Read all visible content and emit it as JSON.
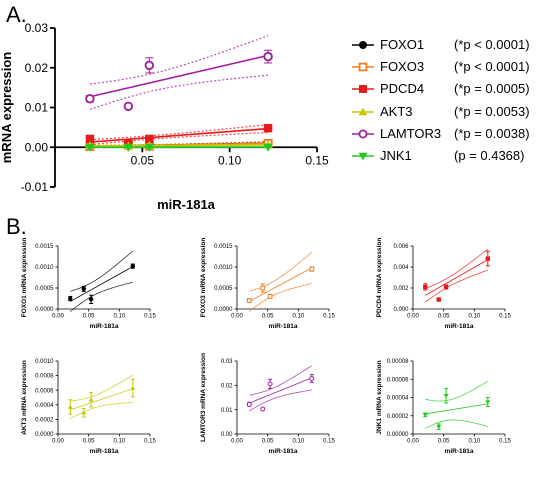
{
  "panels": {
    "a_label": "A.",
    "b_label": "B."
  },
  "legend": [
    {
      "name": "FOXO1",
      "p": "(*p < 0.0001)",
      "color": "#000000",
      "marker": "circle-filled"
    },
    {
      "name": "FOXO3",
      "p": "(*p < 0.0001)",
      "color": "#f07c1e",
      "marker": "square-open"
    },
    {
      "name": "PDCD4",
      "p": "(*p = 0.0005)",
      "color": "#e41a1c",
      "marker": "square-filled"
    },
    {
      "name": "AKT3",
      "p": "(*p = 0.0053)",
      "color": "#c8c800",
      "marker": "triangle-up"
    },
    {
      "name": "LAMTOR3",
      "p": "(*p = 0.0038)",
      "color": "#a020a0",
      "marker": "circle-open"
    },
    {
      "name": "JNK1",
      "p": "(p = 0.4368)",
      "color": "#22c822",
      "marker": "triangle-down"
    }
  ],
  "chart_data": [
    {
      "type": "scatter",
      "title": "",
      "xlabel": "miR-181a",
      "ylabel": "mRNA expression",
      "xlim": [
        0,
        0.15
      ],
      "ylim": [
        -0.01,
        0.03
      ],
      "xticks": [
        "0.00",
        "0.05",
        "0.10",
        "0.15"
      ],
      "yticks": [
        "-0.01",
        "0.00",
        "0.01",
        "0.02",
        "0.03"
      ],
      "x": [
        0.02,
        0.042,
        0.054,
        0.122
      ],
      "series": [
        {
          "name": "FOXO1",
          "color": "#000000",
          "marker": "circle-filled",
          "values": [
            0.00025,
            0.00048,
            0.00023,
            0.00102
          ],
          "err": [
            5e-05,
            6e-05,
            0.0001,
            5e-05
          ],
          "fit": [
            0.00018,
            0.00101
          ],
          "band": 0.0003
        },
        {
          "name": "FOXO3",
          "color": "#f07c1e",
          "marker": "square-open",
          "values": [
            0.0002,
            0.0005,
            0.0003,
            0.00095
          ],
          "err": [
            4e-05,
            0.0001,
            3e-05,
            5e-05
          ],
          "fit": [
            0.00018,
            0.00098
          ],
          "band": 0.0003
        },
        {
          "name": "PDCD4",
          "color": "#e41a1c",
          "marker": "square-filled",
          "values": [
            0.0021,
            0.0009,
            0.0021,
            0.0048
          ],
          "err": [
            0.0003,
            0.0001,
            0.0002,
            0.0007
          ],
          "fit": [
            0.0013,
            0.0047
          ],
          "band": 0.0008
        },
        {
          "name": "AKT3",
          "color": "#c8c800",
          "marker": "triangle-up",
          "values": [
            0.00037,
            0.00029,
            0.00047,
            0.00063
          ],
          "err": [
            0.0001,
            6e-05,
            0.0001,
            0.00012
          ],
          "fit": [
            0.00033,
            0.00062
          ],
          "band": 0.00015
        },
        {
          "name": "LAMTOR3",
          "color": "#a020a0",
          "marker": "circle-open",
          "values": [
            0.0122,
            0.0103,
            0.0206,
            0.0228
          ],
          "err": [
            0.0008,
            0.0004,
            0.0019,
            0.0016
          ],
          "fit": [
            0.0127,
            0.0231
          ],
          "band": 0.004
        },
        {
          "name": "JNK1",
          "color": "#22c822",
          "marker": "triangle-down",
          "values": [
            2.1e-05,
            8e-06,
            4.2e-05,
            3.5e-05
          ],
          "err": [
            2e-06,
            3e-06,
            8e-06,
            5e-06
          ],
          "fit": [
            2.2e-05,
            3.3e-05
          ],
          "band": 2e-05
        }
      ]
    },
    {
      "type": "scatter",
      "series_index": 0,
      "xlabel": "miR-181a",
      "ylabel": "FOXO1 mRNA expression",
      "xlim": [
        0,
        0.15
      ],
      "ylim": [
        0,
        0.0015
      ],
      "xticks": [
        "0.00",
        "0.05",
        "0.10",
        "0.15"
      ],
      "yticks": [
        "0.0000",
        "0.0005",
        "0.0010",
        "0.0015"
      ]
    },
    {
      "type": "scatter",
      "series_index": 1,
      "xlabel": "miR-181a",
      "ylabel": "FOXO3 mRNA expression",
      "xlim": [
        0,
        0.15
      ],
      "ylim": [
        0,
        0.0015
      ],
      "xticks": [
        "0.00",
        "0.05",
        "0.10",
        "0.15"
      ],
      "yticks": [
        "0.0000",
        "0.0005",
        "0.0010",
        "0.0015"
      ]
    },
    {
      "type": "scatter",
      "series_index": 2,
      "xlabel": "miR-181a",
      "ylabel": "PDCD4 mRNA expression",
      "xlim": [
        0,
        0.15
      ],
      "ylim": [
        0,
        0.006
      ],
      "xticks": [
        "0.00",
        "0.05",
        "0.10",
        "0.15"
      ],
      "yticks": [
        "0.000",
        "0.002",
        "0.004",
        "0.006"
      ]
    },
    {
      "type": "scatter",
      "series_index": 3,
      "xlabel": "miR-181a",
      "ylabel": "AKT3 mRNA expression",
      "xlim": [
        0,
        0.15
      ],
      "ylim": [
        0,
        0.001
      ],
      "xticks": [
        "0.00",
        "0.05",
        "0.10",
        "0.15"
      ],
      "yticks": [
        "0.0000",
        "0.0002",
        "0.0004",
        "0.0006",
        "0.0008",
        "0.0010"
      ]
    },
    {
      "type": "scatter",
      "series_index": 4,
      "xlabel": "miR-181a",
      "ylabel": "LAMTOR3 mRNA expression",
      "xlim": [
        0,
        0.15
      ],
      "ylim": [
        0,
        0.03
      ],
      "xticks": [
        "0.00",
        "0.05",
        "0.10",
        "0.15"
      ],
      "yticks": [
        "0.00",
        "0.01",
        "0.02",
        "0.03"
      ]
    },
    {
      "type": "scatter",
      "series_index": 5,
      "xlabel": "miR-181a",
      "ylabel": "JNK1 mRNA expression",
      "xlim": [
        0,
        0.15
      ],
      "ylim": [
        0,
        8e-05
      ],
      "xticks": [
        "0.00",
        "0.05",
        "0.10",
        "0.15"
      ],
      "yticks": [
        "0.00000",
        "0.00002",
        "0.00004",
        "0.00006",
        "0.00008"
      ]
    }
  ]
}
